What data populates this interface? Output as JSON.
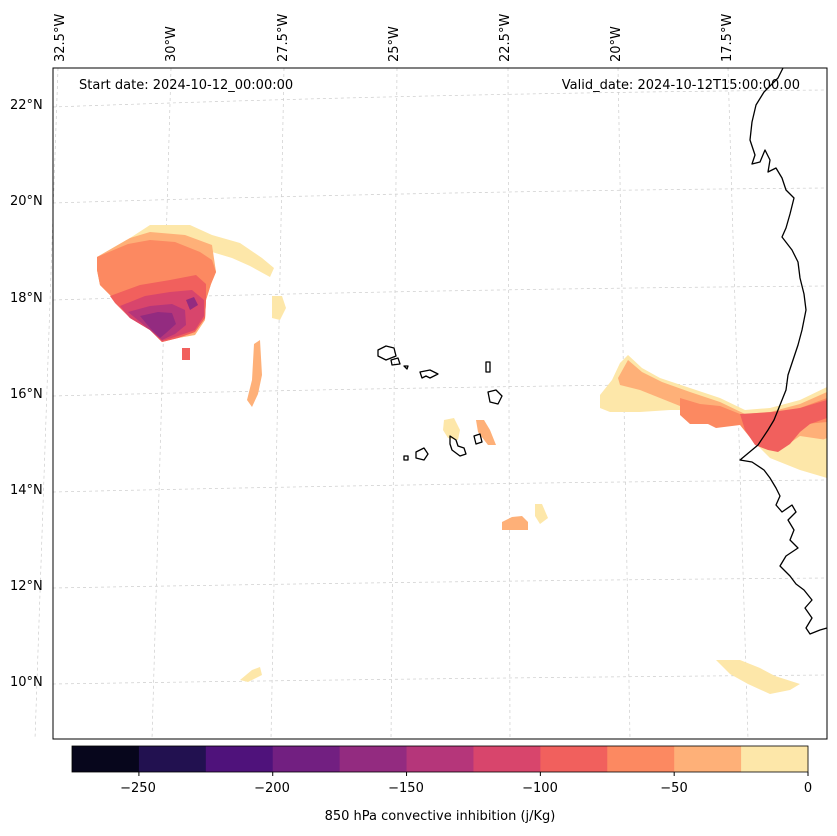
{
  "header": {
    "start_date": "Start date: 2024-10-12_00:00:00",
    "valid_date": "Valid_date: 2024-10-12T15:00:00.00"
  },
  "lat_labels": [
    "22°N",
    "20°N",
    "18°N",
    "16°N",
    "14°N",
    "12°N",
    "10°N"
  ],
  "lon_labels": [
    "32.5°W",
    "30°W",
    "27.5°W",
    "25°W",
    "22.5°W",
    "20°W",
    "17.5°W"
  ],
  "colorbar": {
    "label": "850 hPa convective inhibition (j/Kg)",
    "ticks": [
      "−250",
      "−200",
      "−150",
      "−100",
      "−50",
      "0"
    ],
    "levels": [
      -275,
      -250,
      -225,
      -200,
      -175,
      -150,
      -125,
      -100,
      -75,
      -50,
      -25,
      0
    ],
    "colors": [
      "#07061c",
      "#221150",
      "#4f127b",
      "#721f81",
      "#932b80",
      "#b5367a",
      "#d8456c",
      "#f1605d",
      "#fc8961",
      "#feb078",
      "#fde7a9"
    ]
  }
}
